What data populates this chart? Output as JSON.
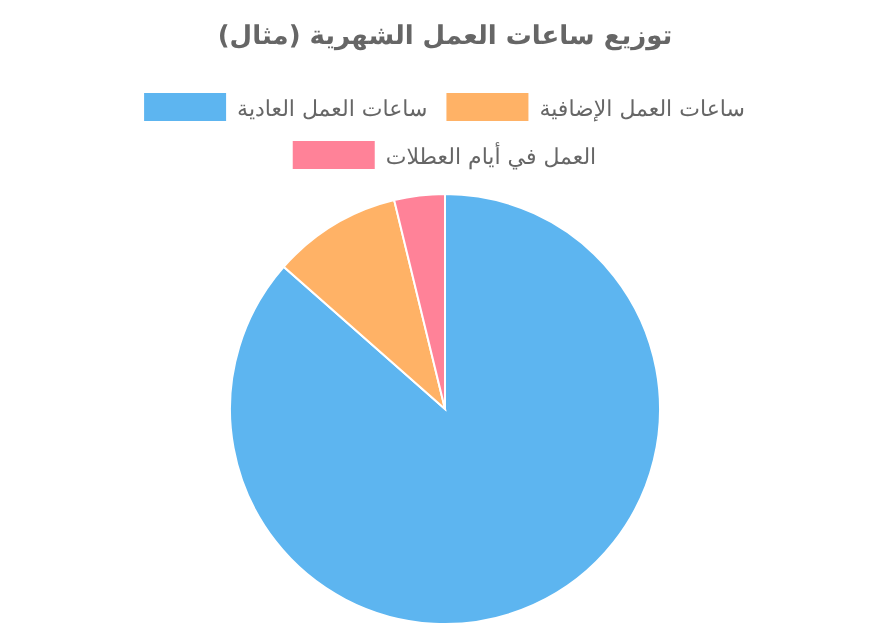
{
  "chart_data": {
    "type": "pie",
    "title": "توزيع ساعات العمل الشهرية (مثال)",
    "categories": [
      "ساعات العمل العادية",
      "ساعات العمل الإضافية",
      "العمل في أيام العطلات"
    ],
    "values": [
      86.5,
      9.7,
      3.8
    ],
    "colors": [
      "#5db5f0",
      "#ffb266",
      "#ff8298"
    ],
    "legend": "top"
  }
}
